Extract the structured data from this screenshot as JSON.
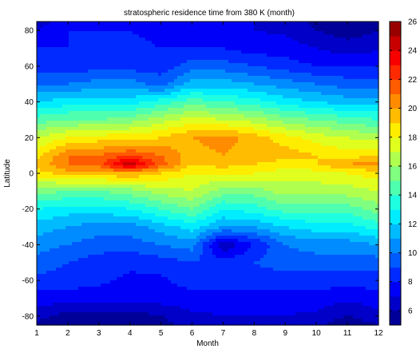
{
  "chart_data": {
    "type": "heatmap",
    "subtype": "filled-contour",
    "title": "stratospheric residence time from 380 K (month)",
    "xlabel": "Month",
    "ylabel": "Latitude",
    "xlim": [
      1,
      12
    ],
    "ylim": [
      -85,
      85
    ],
    "x": [
      1,
      2,
      3,
      4,
      5,
      6,
      7,
      8,
      9,
      10,
      11,
      12
    ],
    "xticks": [
      "1",
      "2",
      "3",
      "4",
      "5",
      "6",
      "7",
      "8",
      "9",
      "10",
      "11",
      "12"
    ],
    "y": [
      -85,
      -80,
      -70,
      -60,
      -50,
      -40,
      -30,
      -20,
      -10,
      0,
      5,
      10,
      20,
      30,
      40,
      50,
      60,
      70,
      80,
      85
    ],
    "yticks": [
      "-80",
      "-60",
      "-40",
      "-20",
      "0",
      "20",
      "40",
      "60",
      "80"
    ],
    "values": [
      [
        5.5,
        5.5,
        5.5,
        5.5,
        5.5,
        6.5,
        6.8,
        6.8,
        6.5,
        6.5,
        5.0,
        6.0
      ],
      [
        6.5,
        5.5,
        5.5,
        5.5,
        6.0,
        6.8,
        7.0,
        7.0,
        7.0,
        6.8,
        6.0,
        6.8
      ],
      [
        7.5,
        7.5,
        7.5,
        7.5,
        7.5,
        7.5,
        7.5,
        7.5,
        7.5,
        7.5,
        7.2,
        7.5
      ],
      [
        8.8,
        8.5,
        8.2,
        7.8,
        7.8,
        8.5,
        8.5,
        8.5,
        8.5,
        8.5,
        8.5,
        8.5
      ],
      [
        9.5,
        9.0,
        8.5,
        8.2,
        8.5,
        9.0,
        8.5,
        9.0,
        9.5,
        9.5,
        9.5,
        9.5
      ],
      [
        10.5,
        10.0,
        9.5,
        9.5,
        10.0,
        10.5,
        6.0,
        8.0,
        10.0,
        10.5,
        10.5,
        11.0
      ],
      [
        11.5,
        11.0,
        10.5,
        10.5,
        11.5,
        12.5,
        11.0,
        11.0,
        12.0,
        12.5,
        12.5,
        13.5
      ],
      [
        13.0,
        12.5,
        12.5,
        13.0,
        14.0,
        15.0,
        13.0,
        13.5,
        14.5,
        14.5,
        14.5,
        15.5
      ],
      [
        15.5,
        15.0,
        15.0,
        15.5,
        16.5,
        17.0,
        15.5,
        15.5,
        16.5,
        16.5,
        16.5,
        17.0
      ],
      [
        18.5,
        19.5,
        19.5,
        20.0,
        19.0,
        18.0,
        18.0,
        18.0,
        17.5,
        17.5,
        18.0,
        18.5
      ],
      [
        19.5,
        21.0,
        21.5,
        25.0,
        21.5,
        19.0,
        19.5,
        19.0,
        18.5,
        19.0,
        20.0,
        20.5
      ],
      [
        18.5,
        21.0,
        21.0,
        22.0,
        21.0,
        19.5,
        20.0,
        19.5,
        19.5,
        19.0,
        18.5,
        19.0
      ],
      [
        17.0,
        18.0,
        18.5,
        18.5,
        19.0,
        20.0,
        20.5,
        19.5,
        18.5,
        17.5,
        17.0,
        16.5
      ],
      [
        14.5,
        15.0,
        15.0,
        15.5,
        16.5,
        17.5,
        17.0,
        16.5,
        15.5,
        15.0,
        14.5,
        14.0
      ],
      [
        12.0,
        12.5,
        12.5,
        12.5,
        13.5,
        14.5,
        14.0,
        13.5,
        12.5,
        12.0,
        11.5,
        11.5
      ],
      [
        10.0,
        10.0,
        10.5,
        10.5,
        9.5,
        11.5,
        11.5,
        11.0,
        10.5,
        10.0,
        9.5,
        9.5
      ],
      [
        8.5,
        8.5,
        8.5,
        8.5,
        8.5,
        9.5,
        9.5,
        9.0,
        8.5,
        8.0,
        8.0,
        8.0
      ],
      [
        8.0,
        8.0,
        8.5,
        8.5,
        8.0,
        8.0,
        8.0,
        7.5,
        7.5,
        7.0,
        6.5,
        6.8
      ],
      [
        7.0,
        8.0,
        8.0,
        8.0,
        7.5,
        7.5,
        7.5,
        7.0,
        6.8,
        6.0,
        5.5,
        6.0
      ],
      [
        6.5,
        7.5,
        7.5,
        7.5,
        7.2,
        7.2,
        7.2,
        7.0,
        6.5,
        5.8,
        5.0,
        5.5
      ]
    ],
    "levels": [
      6,
      7,
      8,
      9,
      10,
      11,
      12,
      13,
      14,
      15,
      16,
      17,
      18,
      19,
      20,
      21,
      22,
      23,
      24,
      25,
      26
    ],
    "colorbar": {
      "range": [
        5,
        26
      ],
      "ticks": [
        "6",
        "8",
        "10",
        "12",
        "14",
        "16",
        "18",
        "20",
        "22",
        "24",
        "26"
      ]
    },
    "colormap": "jet",
    "grid": false
  }
}
